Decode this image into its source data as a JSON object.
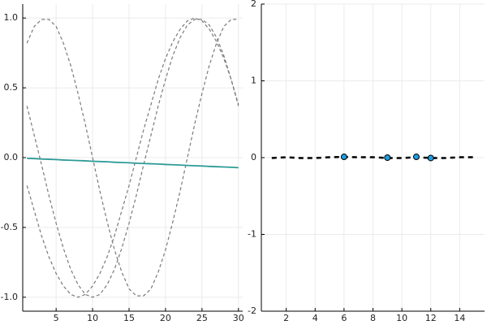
{
  "chart_data": [
    {
      "type": "line",
      "grid": true,
      "x": [
        1,
        2,
        3,
        4,
        5,
        6,
        7,
        8,
        9,
        10,
        11,
        12,
        13,
        14,
        15,
        16,
        17,
        18,
        19,
        20,
        21,
        22,
        23,
        24,
        25,
        26,
        27,
        28,
        29,
        30
      ],
      "xlim": [
        0.42,
        30.58
      ],
      "xticks": [
        5,
        10,
        15,
        20,
        25,
        30
      ],
      "ylim": [
        -1.1,
        1.1
      ],
      "yticks": [
        {
          "value": -1,
          "label": "-1.0"
        },
        {
          "value": -0.5,
          "label": "-0.5"
        },
        {
          "value": 0,
          "label": "0.0"
        },
        {
          "value": 0.5,
          "label": "0.5"
        },
        {
          "value": 1,
          "label": "1.0"
        }
      ],
      "series": [
        {
          "color": "#7a7a7a",
          "style": "dashed",
          "values": [
            0.82,
            0.94,
            0.99,
            0.99,
            0.94,
            0.82,
            0.66,
            0.46,
            0.24,
            0.0,
            -0.24,
            -0.46,
            -0.66,
            -0.82,
            -0.94,
            -0.99,
            -0.99,
            -0.94,
            -0.82,
            -0.66,
            -0.46,
            -0.24,
            0.0,
            0.24,
            0.46,
            0.66,
            0.82,
            0.94,
            0.99,
            0.99
          ]
        },
        {
          "color": "#7a7a7a",
          "style": "dashed",
          "values": [
            0.37,
            0.16,
            -0.05,
            -0.27,
            -0.47,
            -0.65,
            -0.8,
            -0.91,
            -0.98,
            -1.0,
            -0.98,
            -0.91,
            -0.8,
            -0.65,
            -0.47,
            -0.27,
            -0.05,
            0.16,
            0.37,
            0.56,
            0.73,
            0.86,
            0.95,
            0.99,
            0.99,
            0.95,
            0.86,
            0.73,
            0.56,
            0.37
          ]
        },
        {
          "color": "#7a7a7a",
          "style": "dashed",
          "values": [
            -0.2,
            -0.38,
            -0.56,
            -0.71,
            -0.83,
            -0.92,
            -0.98,
            -1.0,
            -0.98,
            -0.92,
            -0.83,
            -0.71,
            -0.56,
            -0.38,
            -0.2,
            0.0,
            0.2,
            0.38,
            0.56,
            0.71,
            0.83,
            0.92,
            0.98,
            1.0,
            0.98,
            0.92,
            0.83,
            0.71,
            0.56,
            0.38
          ]
        },
        {
          "color": "#2e9b98",
          "style": "solid",
          "values": [
            -0.005,
            -0.007,
            -0.01,
            -0.012,
            -0.014,
            -0.017,
            -0.019,
            -0.021,
            -0.023,
            -0.026,
            -0.028,
            -0.03,
            -0.033,
            -0.035,
            -0.037,
            -0.04,
            -0.042,
            -0.044,
            -0.046,
            -0.049,
            -0.051,
            -0.053,
            -0.056,
            -0.058,
            -0.06,
            -0.063,
            -0.065,
            -0.067,
            -0.069,
            -0.072
          ]
        }
      ]
    },
    {
      "type": "line",
      "grid": true,
      "xlim": [
        0.28,
        15.72
      ],
      "xticks": [
        2,
        4,
        6,
        8,
        10,
        12,
        14
      ],
      "ylim": [
        -2,
        2
      ],
      "yticks": [
        -2,
        -1,
        0,
        1,
        2
      ],
      "series": [
        {
          "color": "#000000",
          "style": "dashed",
          "x": [
            1,
            2,
            3,
            4,
            5,
            6,
            7,
            8,
            9,
            10,
            11,
            12,
            13,
            14,
            15
          ],
          "values": [
            -0.005,
            0.005,
            -0.005,
            -0.005,
            0.005,
            0.01,
            0.005,
            0.005,
            -0.005,
            -0.005,
            0.005,
            -0.005,
            -0.005,
            0.005,
            0.005
          ]
        },
        {
          "color": "#1f9de0",
          "style": "markers",
          "x": [
            6,
            9,
            11,
            12
          ],
          "values": [
            0.01,
            0.0,
            0.01,
            -0.005
          ]
        }
      ]
    }
  ]
}
